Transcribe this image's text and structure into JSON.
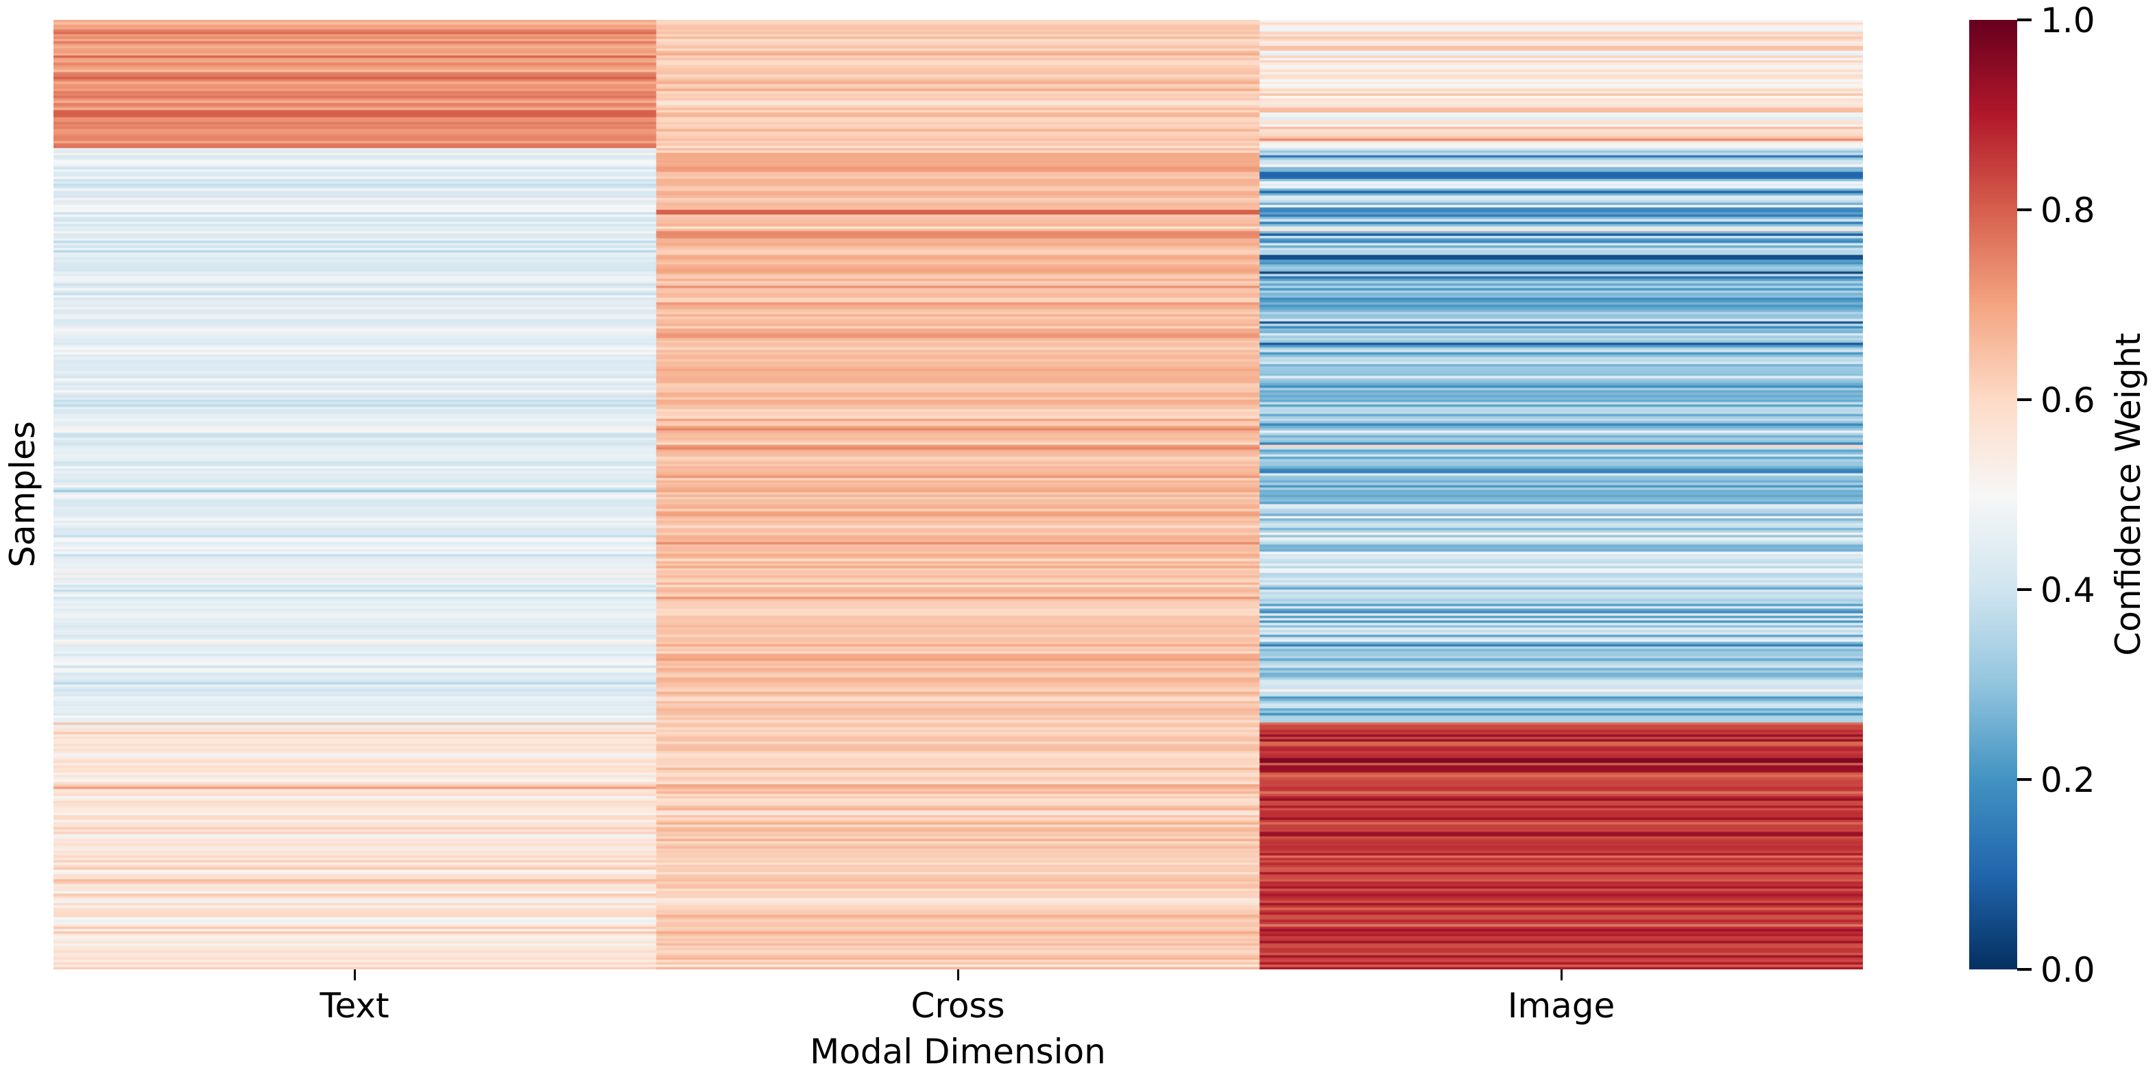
{
  "figure": {
    "background": "#ffffff",
    "text_color": "#000000"
  },
  "chart_data": {
    "type": "heatmap",
    "title": "",
    "xlabel": "Modal Dimension",
    "ylabel": "Samples",
    "categories": [
      "Text",
      "Cross",
      "Image"
    ],
    "x_ticklabels": [
      "Text",
      "Cross",
      "Image"
    ],
    "y_ticklabels": [],
    "grid": false,
    "spines": false,
    "value_range": [
      0.0,
      1.0
    ],
    "n_rows_estimated": 400,
    "seed": 11,
    "colorbar": {
      "label": "Confidence Weight",
      "ticks": [
        "1.0",
        "0.8",
        "0.6",
        "0.4",
        "0.2",
        "0.0"
      ],
      "tick_values": [
        1.0,
        0.8,
        0.6,
        0.4,
        0.2,
        0.0
      ],
      "vmin": 0.0,
      "vmax": 1.0,
      "position": "right"
    },
    "colormap": {
      "name": "RdBu_r",
      "stops": [
        {
          "t": 0.0,
          "color": "#053061"
        },
        {
          "t": 0.1,
          "color": "#2166ac"
        },
        {
          "t": 0.2,
          "color": "#4393c3"
        },
        {
          "t": 0.3,
          "color": "#92c5de"
        },
        {
          "t": 0.4,
          "color": "#d1e5f0"
        },
        {
          "t": 0.5,
          "color": "#f7f7f7"
        },
        {
          "t": 0.6,
          "color": "#fddbc7"
        },
        {
          "t": 0.7,
          "color": "#f4a582"
        },
        {
          "t": 0.8,
          "color": "#d6604d"
        },
        {
          "t": 0.9,
          "color": "#b2182b"
        },
        {
          "t": 1.0,
          "color": "#67001f"
        }
      ]
    },
    "regions": [
      {
        "row_frac": [
          0.0,
          0.135
        ],
        "mean": [
          0.73,
          0.63,
          0.55
        ],
        "std": [
          0.035,
          0.025,
          0.07
        ],
        "note": "top band: strong red Text, light orange Cross, pale mixed Image"
      },
      {
        "row_frac": [
          0.135,
          0.33
        ],
        "mean": [
          0.445,
          0.66,
          0.27
        ],
        "std": [
          0.035,
          0.03,
          0.1
        ],
        "note": "light blue Text, salmon Cross, strong blue Image"
      },
      {
        "row_frac": [
          0.33,
          0.52
        ],
        "mean": [
          0.44,
          0.655,
          0.3
        ],
        "std": [
          0.035,
          0.03,
          0.09
        ],
        "note": "light blue Text, salmon Cross, medium blue Image"
      },
      {
        "row_frac": [
          0.52,
          0.741
        ],
        "mean": [
          0.45,
          0.65,
          0.36
        ],
        "std": [
          0.035,
          0.03,
          0.08
        ],
        "note": "light blue Text, salmon Cross, lighter blue Image"
      },
      {
        "row_frac": [
          0.741,
          1.0
        ],
        "mean": [
          0.57,
          0.63,
          0.85
        ],
        "std": [
          0.045,
          0.04,
          0.045
        ],
        "note": "pale orange Text/Cross, strong red Image"
      }
    ],
    "outlier_rows": [
      {
        "column": "Text",
        "row_frac": 0.098,
        "value": 0.8
      },
      {
        "column": "Cross",
        "row_frac": 0.202,
        "value": 0.8
      },
      {
        "column": "Cross",
        "row_frac": 0.225,
        "value": 0.74
      },
      {
        "column": "Image",
        "row_frac": 0.16,
        "value": 0.1
      },
      {
        "column": "Image",
        "row_frac": 0.249,
        "value": 0.05
      },
      {
        "column": "Image",
        "row_frac": 0.778,
        "value": 0.97
      },
      {
        "column": "Image",
        "row_frac": 0.786,
        "value": 0.94
      },
      {
        "column": "Image",
        "row_frac": 0.855,
        "value": 0.93
      }
    ],
    "clamp": [
      0.03,
      0.97
    ]
  }
}
